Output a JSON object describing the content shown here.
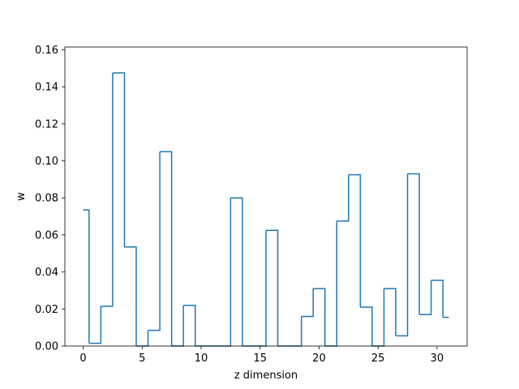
{
  "chart_data": {
    "type": "line",
    "drawstyle": "steps-mid",
    "title": "",
    "xlabel": "z dimension",
    "ylabel": "w",
    "xlim": [
      -1.55,
      32.55
    ],
    "ylim": [
      0.0,
      0.1615
    ],
    "xticks": [
      0,
      5,
      10,
      15,
      20,
      25,
      30
    ],
    "yticks": [
      0.0,
      0.02,
      0.04,
      0.06,
      0.08,
      0.1,
      0.12,
      0.14,
      0.16
    ],
    "ytick_labels": [
      "0.00",
      "0.02",
      "0.04",
      "0.06",
      "0.08",
      "0.10",
      "0.12",
      "0.14",
      "0.16"
    ],
    "grid": false,
    "series": [
      {
        "color": "#1f77b4",
        "x": [
          0,
          1,
          2,
          3,
          4,
          5,
          6,
          7,
          8,
          9,
          10,
          11,
          12,
          13,
          14,
          15,
          16,
          17,
          18,
          19,
          20,
          21,
          22,
          23,
          24,
          25,
          26,
          27,
          28,
          29,
          30,
          31
        ],
        "values": [
          0.0735,
          0.0015,
          0.0215,
          0.1475,
          0.0535,
          0.0,
          0.0085,
          0.105,
          0.0,
          0.022,
          0.0,
          0.0,
          0.0,
          0.08,
          0.0,
          0.0,
          0.0625,
          0.0,
          0.0,
          0.016,
          0.031,
          0.0,
          0.0675,
          0.0925,
          0.021,
          0.0,
          0.031,
          0.0055,
          0.093,
          0.017,
          0.0355,
          0.0155
        ]
      }
    ]
  }
}
